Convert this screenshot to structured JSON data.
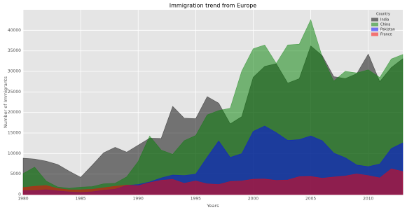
{
  "chart_data": {
    "type": "area",
    "title": "Immigration trend from Europe",
    "x_label": "Years",
    "y_label": "Number of Immigrants",
    "x": [
      1980,
      1981,
      1982,
      1983,
      1984,
      1985,
      1986,
      1987,
      1988,
      1989,
      1990,
      1991,
      1992,
      1993,
      1994,
      1995,
      1996,
      1997,
      1998,
      1999,
      2000,
      2001,
      2002,
      2003,
      2004,
      2005,
      2006,
      2007,
      2008,
      2009,
      2010,
      2011,
      2012,
      2013
    ],
    "series": [
      {
        "name": "India",
        "color": "#000000",
        "values": [
          8880,
          8670,
          8147,
          7338,
          5704,
          4211,
          7150,
          10189,
          11522,
          10343,
          12041,
          13734,
          13673,
          21496,
          18620,
          18489,
          23859,
          22268,
          17241,
          18974,
          28572,
          31223,
          31889,
          27155,
          28235,
          36210,
          33848,
          28742,
          28261,
          29456,
          34235,
          27509,
          30933,
          33087
        ]
      },
      {
        "name": "China",
        "color": "#008000",
        "values": [
          5123,
          6682,
          3308,
          1863,
          1527,
          1816,
          1960,
          2643,
          2758,
          4323,
          8076,
          14255,
          10846,
          9817,
          13128,
          14398,
          19415,
          20475,
          21049,
          30069,
          35529,
          36434,
          31961,
          36439,
          36619,
          42584,
          33518,
          27642,
          30037,
          29622,
          30391,
          28502,
          33024,
          34129
        ]
      },
      {
        "name": "Pakistan",
        "color": "#0000ff",
        "values": [
          978,
          972,
          1201,
          900,
          668,
          514,
          691,
          1072,
          1334,
          2261,
          2470,
          3079,
          4071,
          4777,
          4666,
          4994,
          9125,
          13073,
          9068,
          9979,
          15400,
          16708,
          15110,
          13205,
          13399,
          14314,
          13127,
          10124,
          8994,
          7217,
          6811,
          7468,
          11227,
          12603
        ]
      },
      {
        "name": "France",
        "color": "#ff0000",
        "values": [
          1729,
          2027,
          2219,
          1490,
          1169,
          1177,
          1298,
          1658,
          2038,
          2332,
          2177,
          2911,
          3487,
          3709,
          2759,
          3332,
          2623,
          2473,
          3214,
          3343,
          3765,
          3806,
          3463,
          3568,
          4391,
          4429,
          4002,
          4290,
          4532,
          5051,
          4646,
          4080,
          6280,
          5623
        ]
      }
    ],
    "opacity": 0.5,
    "xlim": [
      1980,
      2013
    ],
    "xticks": [
      1980,
      1985,
      1990,
      1995,
      2000,
      2005,
      2010
    ],
    "ylim": [
      0,
      45000
    ],
    "yticks": [
      0,
      5000,
      10000,
      15000,
      20000,
      25000,
      30000,
      35000,
      40000
    ],
    "grid": true,
    "legend_title": "Country",
    "legend_position": "upper right"
  }
}
